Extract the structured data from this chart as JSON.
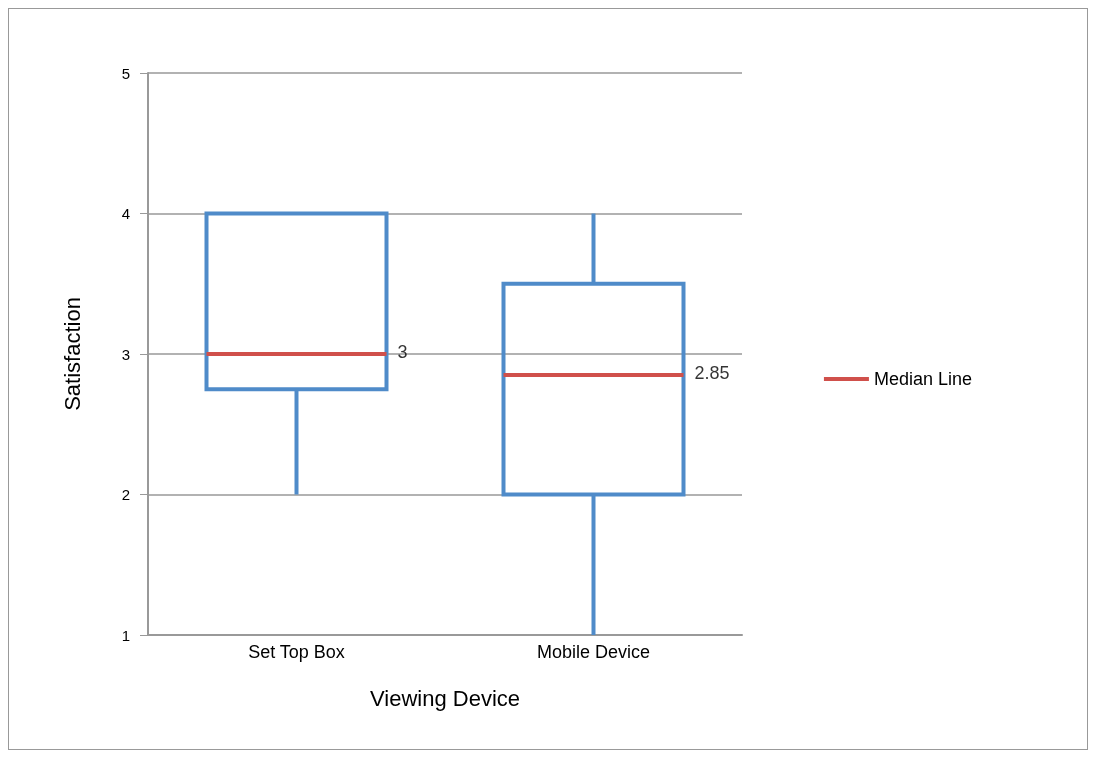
{
  "chart_data": {
    "type": "box",
    "xlabel": "Viewing Device",
    "ylabel": "Satisfaction",
    "categories": [
      "Set Top Box",
      "Mobile Device"
    ],
    "series": [
      {
        "color": "#4f8bc9",
        "boxes": [
          {
            "low": 2,
            "q1": 2.75,
            "median": 3,
            "q3": 4,
            "high": 4
          },
          {
            "low": 1,
            "q1": 2,
            "median": 2.85,
            "q3": 3.5,
            "high": 4
          }
        ],
        "value_labels": [
          "3",
          "2.85"
        ]
      },
      {
        "name": "Median Line",
        "color": "#d0504b",
        "values": [
          null,
          null
        ]
      }
    ],
    "ylim": [
      1,
      5
    ],
    "yticks": [
      1,
      2,
      3,
      4,
      5
    ],
    "grid": "y",
    "legend": "right"
  }
}
